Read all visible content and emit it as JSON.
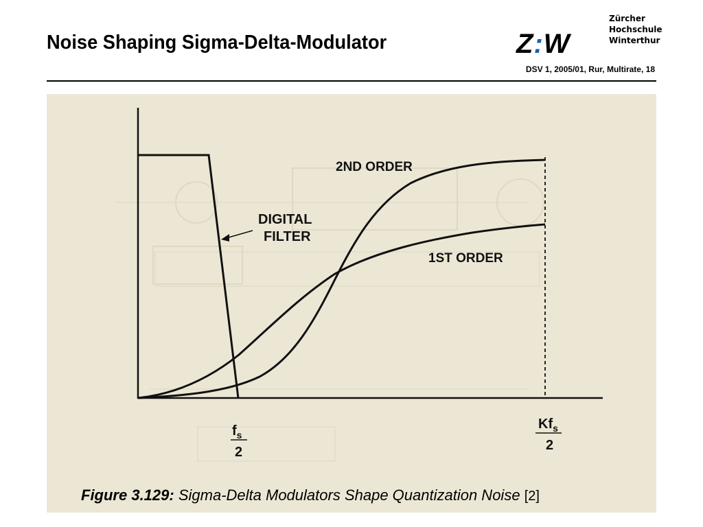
{
  "header": {
    "title": "Noise Shaping Sigma-Delta-Modulator",
    "logo_text": "Z:W",
    "institution_lines": [
      "Zürcher",
      "Hochschule",
      "Winterthur"
    ],
    "meta": "DSV 1, 2005/01, Rur, Multirate, 18"
  },
  "figure": {
    "labels": {
      "second_order": "2ND ORDER",
      "first_order": "1ST ORDER",
      "digital_filter_line1": "DIGITAL",
      "digital_filter_line2": "FILTER",
      "fs_numerator": "f",
      "fs_subscript": "s",
      "fs_denominator": "2",
      "kfs_numerator": "Kf",
      "kfs_subscript": "s",
      "kfs_denominator": "2"
    },
    "caption": {
      "figure_number": "Figure 3.129:",
      "text": "Sigma-Delta Modulators Shape Quantization Noise",
      "reference": "[2]"
    },
    "colors": {
      "scan_background": "#ece7d5",
      "logo_accent": "#1a5fb4"
    }
  }
}
